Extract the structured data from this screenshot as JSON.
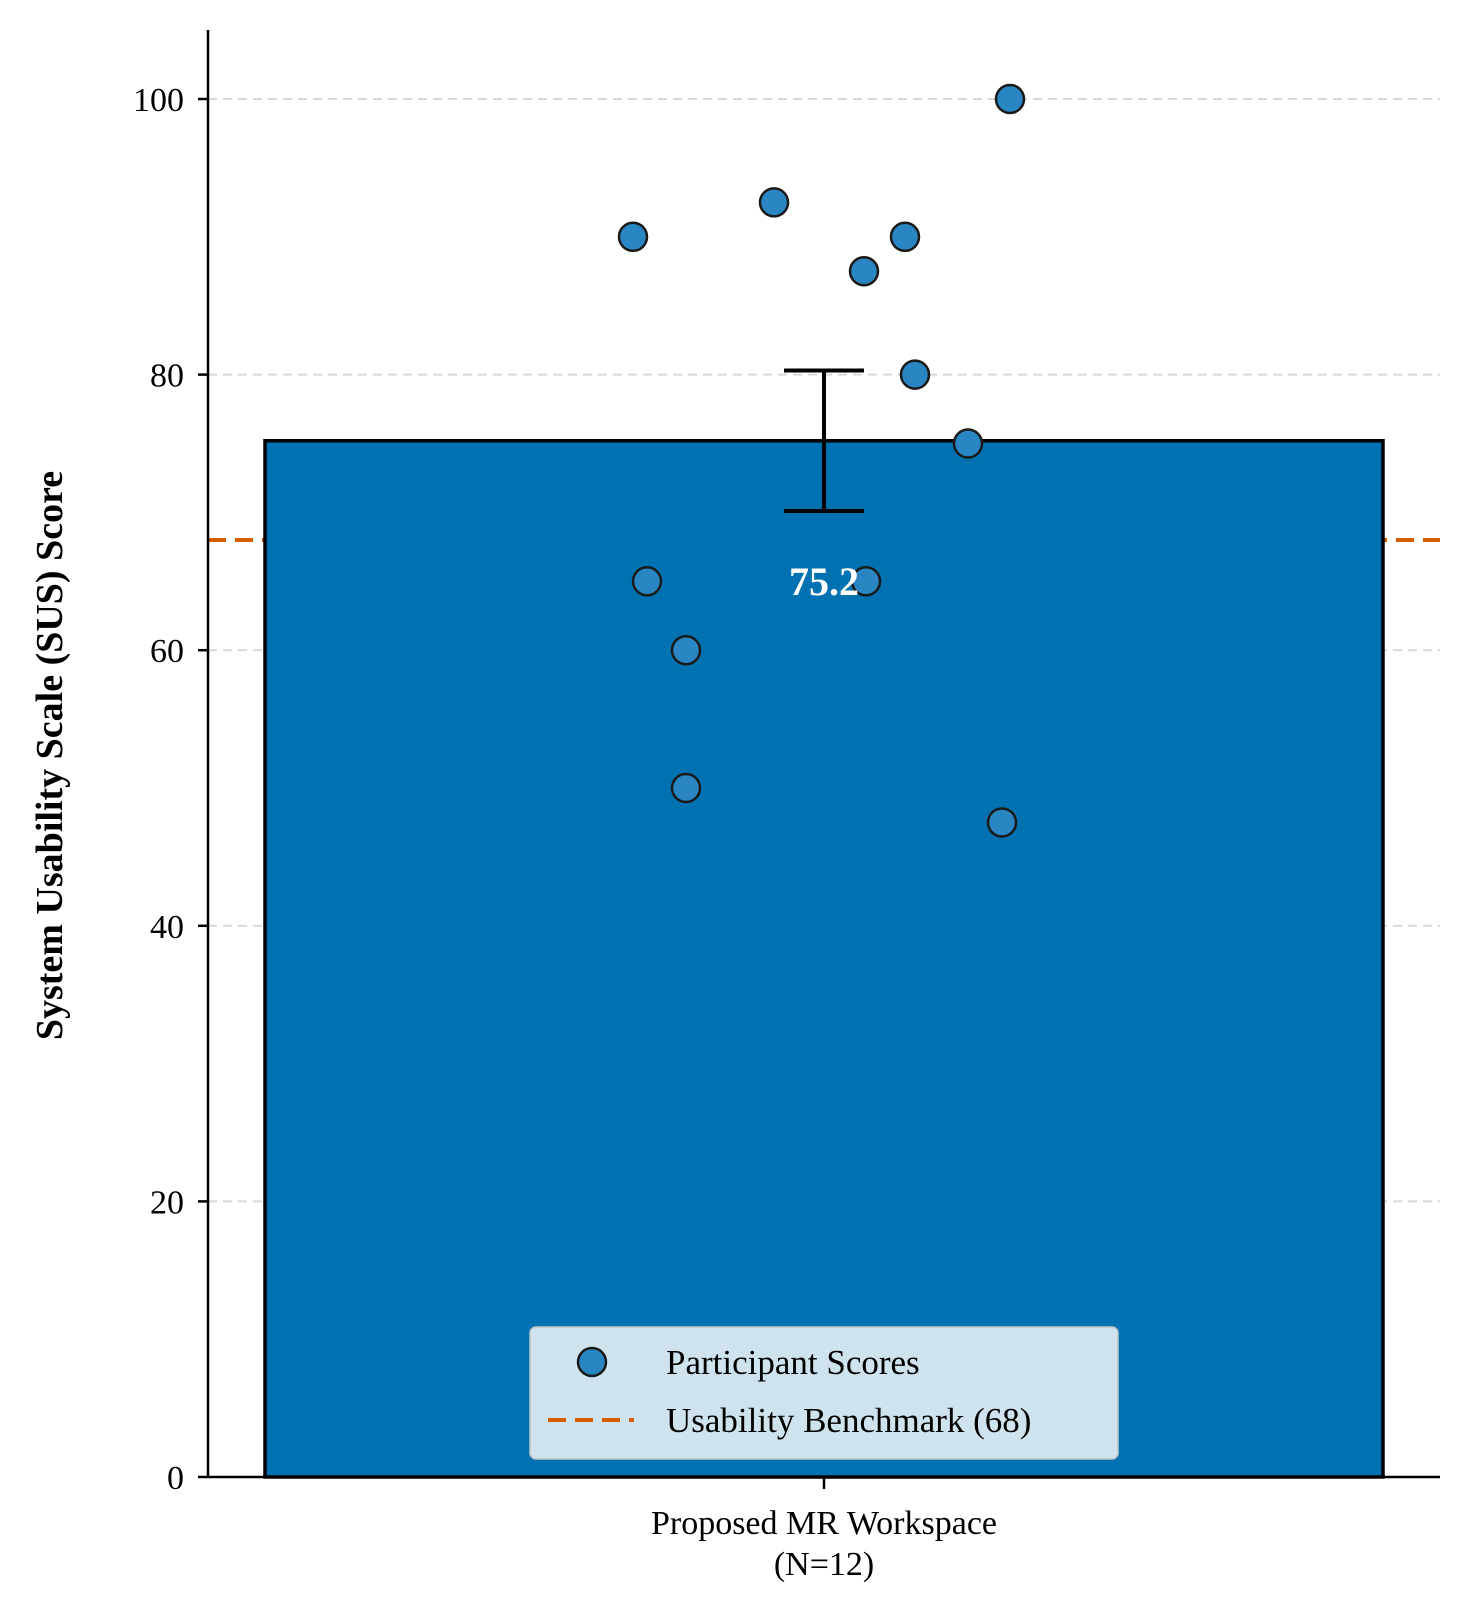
{
  "chart_data": {
    "type": "bar",
    "categories": [
      "Proposed MR Workspace"
    ],
    "category_sublabels": [
      "(N=12)"
    ],
    "values": [
      75.2
    ],
    "value_label": "75.2",
    "error": [
      5.1
    ],
    "participant_scores": [
      90,
      65,
      60,
      50,
      92.5,
      87.5,
      65,
      90,
      80,
      75,
      47.5,
      100
    ],
    "benchmark": 68,
    "ylabel": "System Usability Scale (SUS) Score",
    "xlabel": "",
    "ylim": [
      0,
      105
    ],
    "yticks": [
      0,
      20,
      40,
      60,
      80,
      100
    ],
    "grid": "horizontal dashed",
    "legend": {
      "placement": "lower-center",
      "entries": [
        "Participant Scores",
        "Usability Benchmark (68)"
      ]
    },
    "colors": {
      "bar": "#0072b2",
      "points": "#2986c2",
      "benchmark": "#d55e00",
      "grid": "#d9d9d9"
    }
  }
}
